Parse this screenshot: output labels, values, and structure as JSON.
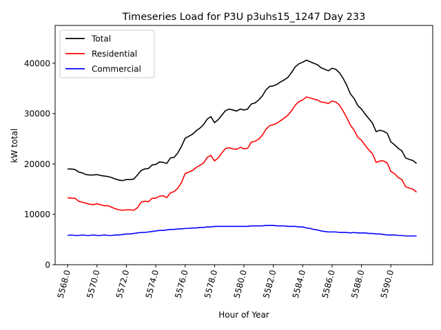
{
  "chart_data": {
    "type": "line",
    "title": "Timeseries Load for P3U p3uhs15_1247  Day 233",
    "xlabel": "Hour of Year",
    "ylabel": "kW total",
    "xlim": [
      5567.15,
      5592.85
    ],
    "ylim": [
      0,
      47500
    ],
    "x_ticks": [
      5568.0,
      5570.0,
      5572.0,
      5574.0,
      5576.0,
      5578.0,
      5580.0,
      5582.0,
      5584.0,
      5586.0,
      5588.0,
      5590.0
    ],
    "x_tick_labels": [
      "5568.0",
      "5570.0",
      "5572.0",
      "5574.0",
      "5576.0",
      "5578.0",
      "5580.0",
      "5582.0",
      "5584.0",
      "5586.0",
      "5588.0",
      "5590.0"
    ],
    "y_ticks": [
      0,
      10000,
      20000,
      30000,
      40000
    ],
    "y_tick_labels": [
      "0",
      "10000",
      "20000",
      "30000",
      "40000"
    ],
    "grid": false,
    "legend_position": "top-left",
    "x_start": 5568.0,
    "x_step": 0.25,
    "series": [
      {
        "name": "Total",
        "color": "#000000",
        "values": [
          19000,
          19000,
          18900,
          18400,
          18200,
          17900,
          17800,
          17800,
          17900,
          17700,
          17600,
          17500,
          17300,
          17000,
          16800,
          16700,
          16900,
          16900,
          17000,
          17800,
          18700,
          19000,
          19100,
          19800,
          19900,
          20400,
          20300,
          20100,
          21200,
          21300,
          22200,
          23500,
          25100,
          25500,
          25900,
          26600,
          27100,
          27800,
          28900,
          29400,
          28200,
          28800,
          29700,
          30600,
          30900,
          30700,
          30500,
          30900,
          30700,
          30900,
          31900,
          32100,
          32700,
          33500,
          34700,
          35400,
          35500,
          35800,
          36300,
          36700,
          37200,
          38200,
          39300,
          39900,
          40200,
          40600,
          40300,
          40000,
          39700,
          39100,
          38800,
          38500,
          39000,
          38800,
          38100,
          37000,
          35600,
          33900,
          33000,
          31600,
          30900,
          29900,
          29000,
          28100,
          26400,
          26700,
          26500,
          26100,
          24400,
          23800,
          23100,
          22600,
          21200,
          20900,
          20700,
          20100
        ]
      },
      {
        "name": "Residential",
        "color": "#ff0000",
        "values": [
          13300,
          13200,
          13200,
          12600,
          12400,
          12200,
          12000,
          11900,
          12100,
          11900,
          11700,
          11700,
          11400,
          11100,
          10900,
          10800,
          10900,
          10900,
          10800,
          11300,
          12400,
          12600,
          12500,
          13200,
          13200,
          13600,
          13700,
          13300,
          14300,
          14500,
          15200,
          16300,
          18100,
          18400,
          18700,
          19300,
          19700,
          20200,
          21300,
          21700,
          20600,
          21200,
          22200,
          23100,
          23200,
          23000,
          22900,
          23300,
          23000,
          23100,
          24300,
          24500,
          24900,
          25700,
          26900,
          27600,
          27800,
          28100,
          28600,
          29100,
          29700,
          30600,
          31700,
          32400,
          32700,
          33300,
          33100,
          32900,
          32700,
          32300,
          32200,
          32000,
          32500,
          32300,
          31700,
          30500,
          29200,
          27700,
          26700,
          25300,
          24700,
          23700,
          22800,
          22000,
          20300,
          20600,
          20600,
          20200,
          18500,
          18100,
          17300,
          16900,
          15500,
          15200,
          15000,
          14400
        ]
      },
      {
        "name": "Commercial",
        "color": "#0000ff",
        "values": [
          5800,
          5900,
          5800,
          5800,
          5900,
          5800,
          5800,
          5900,
          5800,
          5800,
          5900,
          5800,
          5800,
          5900,
          5900,
          6000,
          6100,
          6100,
          6200,
          6300,
          6400,
          6400,
          6500,
          6600,
          6700,
          6800,
          6800,
          6900,
          7000,
          7000,
          7100,
          7100,
          7200,
          7200,
          7300,
          7300,
          7400,
          7400,
          7500,
          7500,
          7600,
          7600,
          7600,
          7600,
          7600,
          7600,
          7600,
          7600,
          7600,
          7600,
          7700,
          7700,
          7700,
          7700,
          7800,
          7800,
          7800,
          7700,
          7700,
          7700,
          7600,
          7600,
          7600,
          7500,
          7500,
          7300,
          7200,
          7000,
          6900,
          6700,
          6600,
          6500,
          6500,
          6500,
          6400,
          6400,
          6400,
          6300,
          6400,
          6300,
          6300,
          6300,
          6200,
          6200,
          6100,
          6100,
          6000,
          5900,
          5900,
          5900,
          5800,
          5800,
          5700,
          5700,
          5700,
          5700
        ]
      }
    ]
  }
}
